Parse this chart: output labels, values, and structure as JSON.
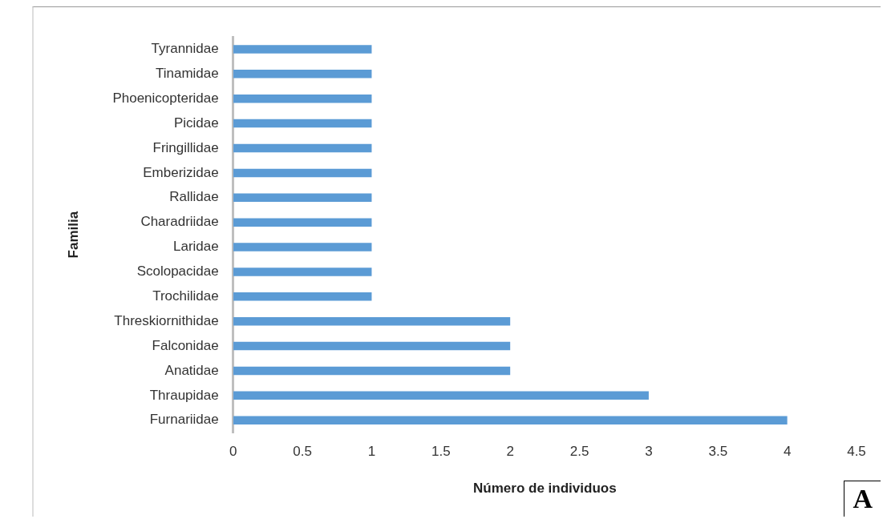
{
  "chart_data": {
    "type": "bar",
    "orientation": "horizontal",
    "xlabel": "Número de individuos",
    "ylabel": "Familia",
    "categories": [
      "Tyrannidae",
      "Tinamidae",
      "Phoenicopteridae",
      "Picidae",
      "Fringillidae",
      "Emberizidae",
      "Rallidae",
      "Charadriidae",
      "Laridae",
      "Scolopacidae",
      "Trochilidae",
      "Threskiornithidae",
      "Falconidae",
      "Anatidae",
      "Thraupidae",
      "Furnariidae"
    ],
    "values": [
      1,
      1,
      1,
      1,
      1,
      1,
      1,
      1,
      1,
      1,
      1,
      2,
      2,
      2,
      3,
      4
    ],
    "color": "#5b9bd5",
    "xlim": [
      0,
      4.5
    ],
    "xticks": [
      0,
      0.5,
      1,
      1.5,
      2,
      2.5,
      3,
      3.5,
      4,
      4.5
    ],
    "grid": false,
    "legend": false,
    "annotations": [
      "A"
    ]
  }
}
